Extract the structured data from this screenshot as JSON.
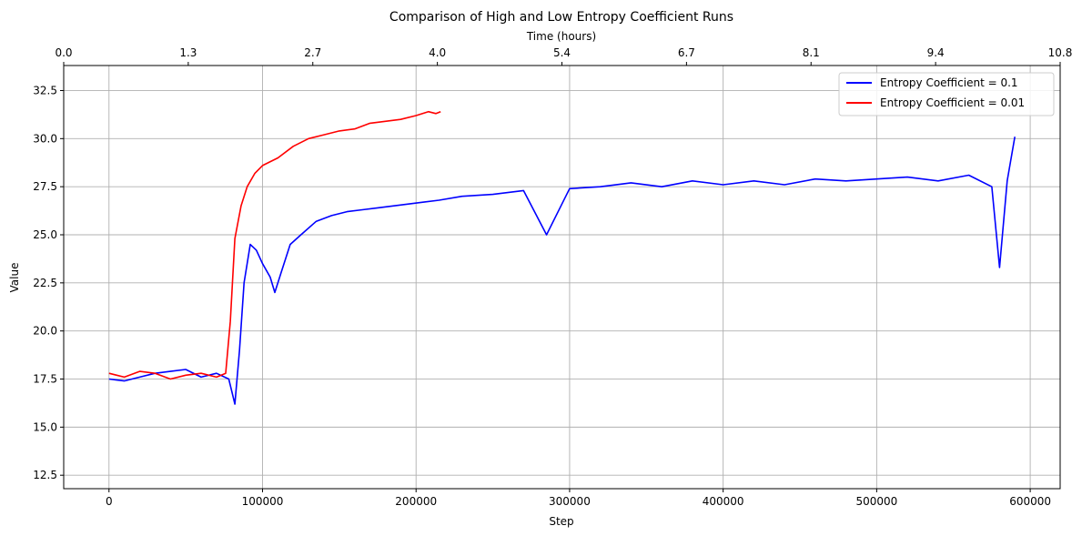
{
  "chart_data": {
    "type": "line",
    "title": "Comparison of High and Low Entropy Coefficient Runs",
    "xlabel": "Step",
    "ylabel": "Value",
    "top_xlabel": "Time (hours)",
    "xlim": [
      -29500,
      619500
    ],
    "ylim": [
      11.8,
      33.8
    ],
    "x_ticks": [
      0,
      100000,
      200000,
      300000,
      400000,
      500000,
      600000
    ],
    "y_ticks": [
      12.5,
      15.0,
      17.5,
      20.0,
      22.5,
      25.0,
      27.5,
      30.0,
      32.5
    ],
    "top_ticks": [
      "0.0",
      "1.3",
      "2.7",
      "4.0",
      "5.4",
      "6.7",
      "8.1",
      "9.4",
      "10.8"
    ],
    "grid": true,
    "legend_position": "upper right",
    "series": [
      {
        "name": "Entropy Coefficient = 0.1",
        "color": "#0000ff",
        "x": [
          0,
          10000,
          20000,
          30000,
          40000,
          50000,
          60000,
          70000,
          78000,
          82000,
          85000,
          88000,
          92000,
          96000,
          100000,
          105000,
          108000,
          112000,
          118000,
          125000,
          135000,
          145000,
          155000,
          165000,
          175000,
          185000,
          195000,
          205000,
          215000,
          230000,
          250000,
          270000,
          285000,
          300000,
          320000,
          340000,
          360000,
          380000,
          400000,
          420000,
          440000,
          460000,
          480000,
          500000,
          520000,
          540000,
          560000,
          575000,
          580000,
          585000,
          590000
        ],
        "y": [
          17.5,
          17.4,
          17.6,
          17.8,
          17.9,
          18.0,
          17.6,
          17.8,
          17.5,
          16.2,
          19.0,
          22.5,
          24.5,
          24.2,
          23.5,
          22.8,
          22.0,
          23.0,
          24.5,
          25.0,
          25.7,
          26.0,
          26.2,
          26.3,
          26.4,
          26.5,
          26.6,
          26.7,
          26.8,
          27.0,
          27.1,
          27.3,
          25.0,
          27.4,
          27.5,
          27.7,
          27.5,
          27.8,
          27.6,
          27.8,
          27.6,
          27.9,
          27.8,
          27.9,
          28.0,
          27.8,
          28.1,
          27.5,
          23.3,
          27.8,
          30.1
        ]
      },
      {
        "name": "Entropy Coefficient = 0.01",
        "color": "#ff0000",
        "x": [
          0,
          10000,
          20000,
          30000,
          40000,
          50000,
          60000,
          70000,
          76000,
          79000,
          82000,
          86000,
          90000,
          95000,
          100000,
          110000,
          120000,
          130000,
          140000,
          150000,
          160000,
          170000,
          180000,
          190000,
          200000,
          208000,
          213000,
          216000
        ],
        "y": [
          17.8,
          17.6,
          17.9,
          17.8,
          17.5,
          17.7,
          17.8,
          17.6,
          17.8,
          20.5,
          24.8,
          26.5,
          27.5,
          28.2,
          28.6,
          29.0,
          29.6,
          30.0,
          30.2,
          30.4,
          30.5,
          30.8,
          30.9,
          31.0,
          31.2,
          31.4,
          31.3,
          31.4
        ]
      }
    ]
  }
}
